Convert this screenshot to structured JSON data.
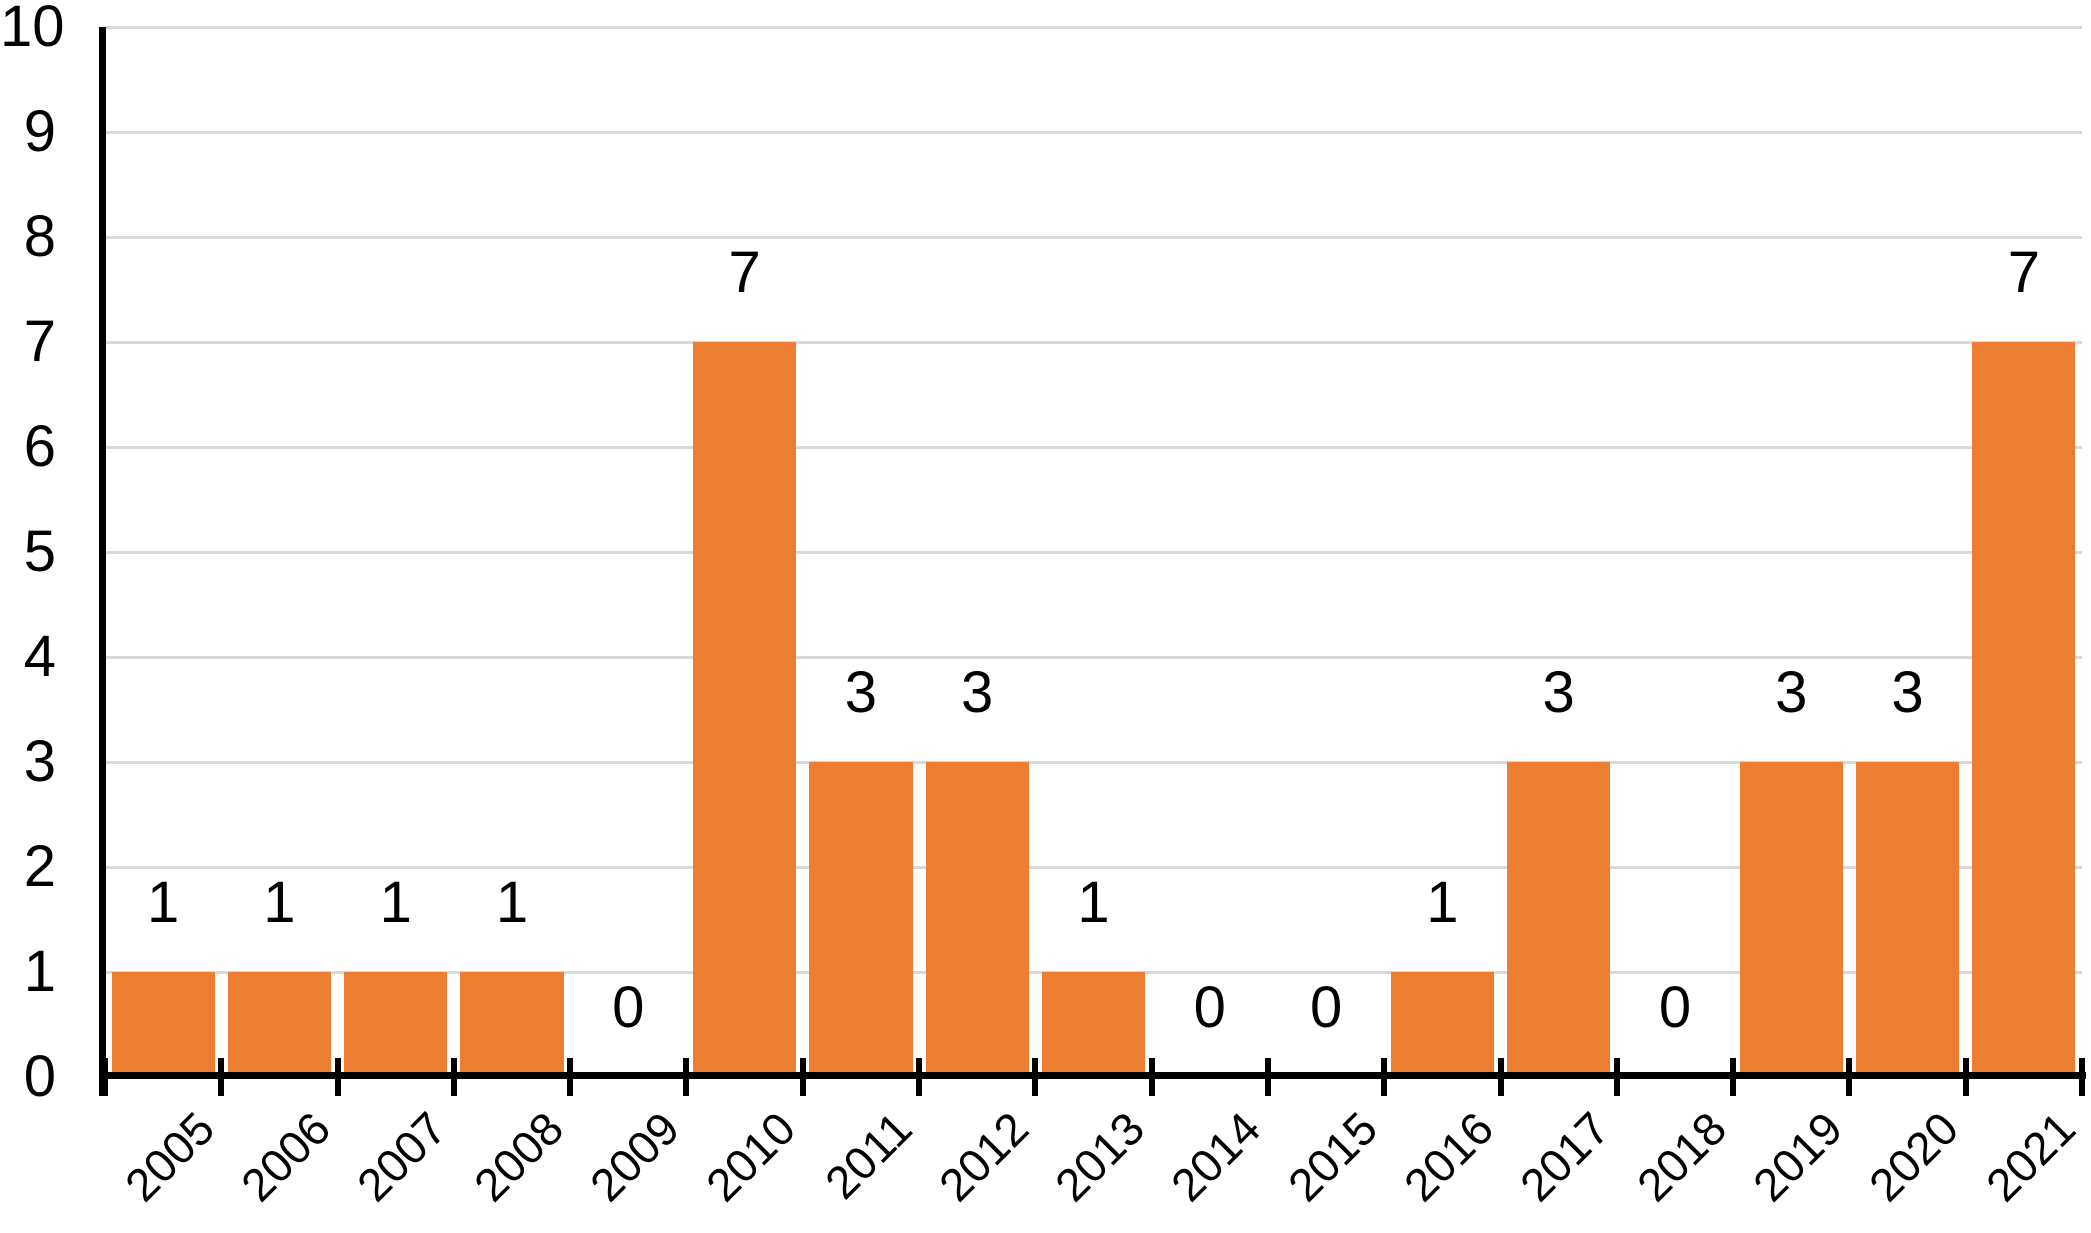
{
  "chart_data": {
    "type": "bar",
    "title": "",
    "xlabel": "",
    "ylabel": "",
    "categories": [
      "2005",
      "2006",
      "2007",
      "2008",
      "2009",
      "2010",
      "2011",
      "2012",
      "2013",
      "2014",
      "2015",
      "2016",
      "2017",
      "2018",
      "2019",
      "2020",
      "2021"
    ],
    "values": [
      1,
      1,
      1,
      1,
      0,
      7,
      3,
      3,
      1,
      0,
      0,
      1,
      3,
      0,
      3,
      3,
      7
    ],
    "ylim": [
      0,
      10
    ],
    "ytick_interval": 1,
    "grid": true,
    "legend": "none",
    "data_labels": true,
    "bar_color": "#ED7D31",
    "gridline_color": "#D9D9D9",
    "axis_color": "#000000",
    "text_color": "#000000",
    "background_color": "#FFFFFF"
  }
}
